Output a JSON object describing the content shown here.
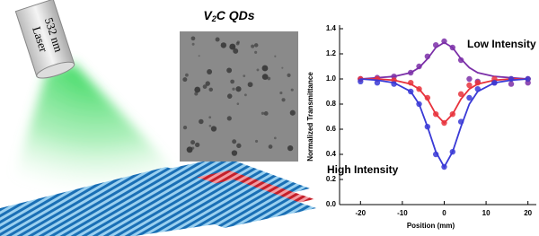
{
  "illustration": {
    "laser": "Laser",
    "wavelength": "532 nm",
    "tem_title": [
      "V",
      "2",
      "C QDs"
    ]
  },
  "chart_data": {
    "type": "scatter",
    "y_label": "Normalized Transmittance",
    "x_label": "Position (mm)",
    "annotations": [
      "Low Intensity",
      "High Intensity"
    ],
    "x": [
      -20,
      -16,
      -12,
      -8,
      -6,
      -4,
      -2,
      0,
      2,
      4,
      6,
      8,
      12,
      16,
      20
    ],
    "series": [
      {
        "color": "#7b2fa8",
        "values": [
          1.0,
          1.01,
          1.02,
          1.05,
          1.1,
          1.18,
          1.27,
          1.3,
          1.25,
          1.15,
          1.0,
          0.98,
          0.97,
          0.96,
          0.97
        ],
        "fit": [
          1.0,
          1.01,
          1.02,
          1.05,
          1.09,
          1.16,
          1.25,
          1.29,
          1.25,
          1.16,
          1.09,
          1.05,
          1.02,
          1.01,
          1.0
        ]
      },
      {
        "color": "#e8323c",
        "values": [
          1.0,
          1.0,
          0.99,
          0.97,
          0.92,
          0.85,
          0.72,
          0.65,
          0.72,
          0.88,
          0.95,
          0.97,
          1.0,
          1.0,
          1.0
        ],
        "fit": [
          1.0,
          1.0,
          0.99,
          0.96,
          0.92,
          0.84,
          0.72,
          0.65,
          0.72,
          0.84,
          0.92,
          0.96,
          0.99,
          1.0,
          1.0
        ]
      },
      {
        "color": "#3a3ad6",
        "values": [
          0.98,
          0.97,
          0.96,
          0.9,
          0.8,
          0.62,
          0.4,
          0.3,
          0.42,
          0.66,
          0.85,
          0.92,
          0.97,
          1.0,
          1.0
        ],
        "fit": [
          1.0,
          0.99,
          0.97,
          0.9,
          0.8,
          0.62,
          0.42,
          0.3,
          0.42,
          0.62,
          0.8,
          0.9,
          0.97,
          0.99,
          1.0
        ]
      }
    ],
    "xlim": [
      -25,
      22
    ],
    "ylim": [
      0,
      1.4
    ],
    "xticks": [
      -20,
      -10,
      0,
      10,
      20
    ],
    "yticks": [
      {
        "value": 0,
        "label": "0.0"
      },
      {
        "value": 0.2,
        "label": "0.2"
      },
      {
        "value": 0.4,
        "label": "0.4"
      },
      {
        "value": 0.6,
        "label": "0.6"
      },
      {
        "value": 0.8,
        "label": "0.8"
      },
      {
        "value": 1.0,
        "label": "1.0"
      },
      {
        "value": 1.2,
        "label": "1.2"
      },
      {
        "value": 1.4,
        "label": "1.4"
      }
    ]
  }
}
